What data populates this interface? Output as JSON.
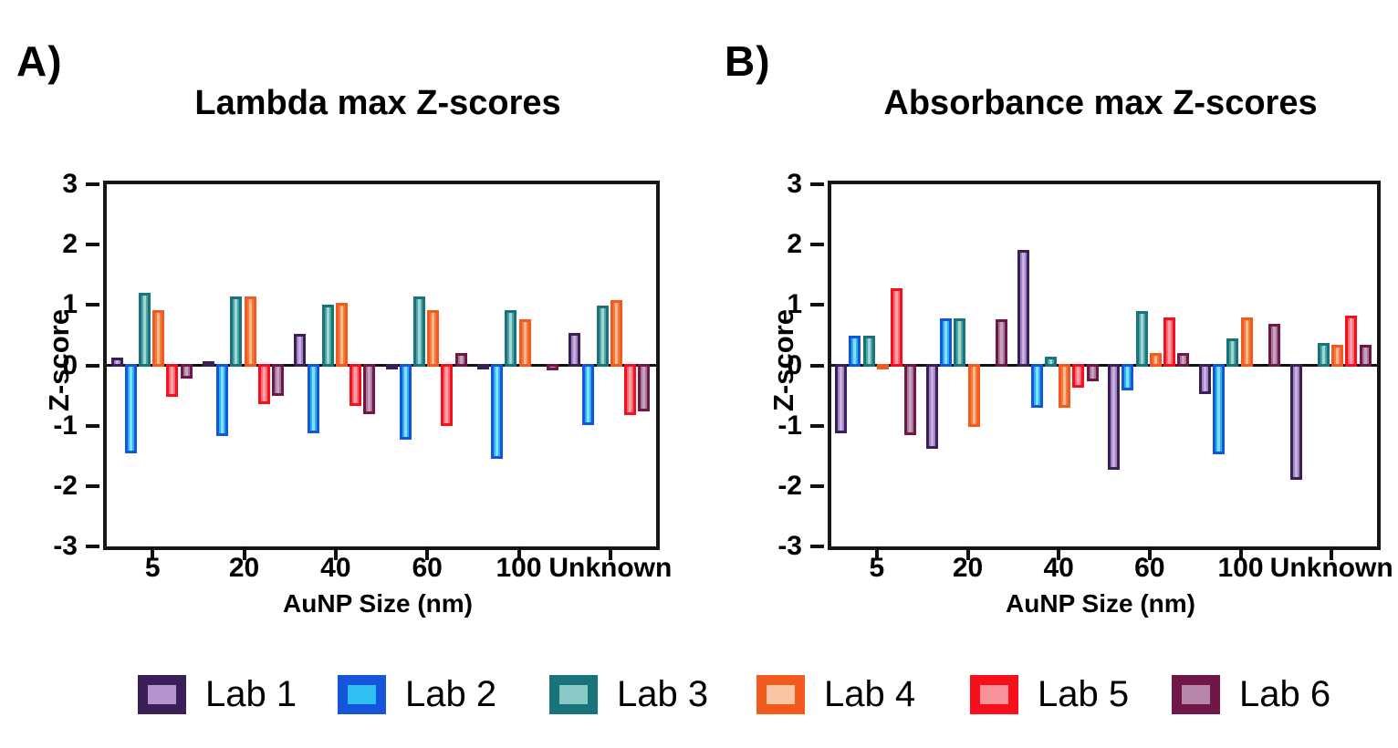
{
  "figure": {
    "background": "#ffffff"
  },
  "legend": {
    "items": [
      {
        "label": "Lab 1",
        "border_color": "#3a1f58",
        "fill_color": "#b493ce",
        "bar_fill": "#a184c4",
        "bar_hilite": "#c9b0df"
      },
      {
        "label": "Lab 2",
        "border_color": "#1455dc",
        "fill_color": "#2fbff1",
        "bar_fill": "#29b5ee",
        "bar_hilite": "#86ddfa"
      },
      {
        "label": "Lab 3",
        "border_color": "#19737a",
        "fill_color": "#8ac8c6",
        "bar_fill": "#4fa4a8",
        "bar_hilite": "#a5d5d3"
      },
      {
        "label": "Lab 4",
        "border_color": "#f35a1e",
        "fill_color": "#f9c5a4",
        "bar_fill": "#f37a40",
        "bar_hilite": "#f9b98f"
      },
      {
        "label": "Lab 5",
        "border_color": "#f7101b",
        "fill_color": "#f8929a",
        "bar_fill": "#f86a74",
        "bar_hilite": "#fba3aa"
      },
      {
        "label": "Lab 6",
        "border_color": "#701747",
        "fill_color": "#b686aa",
        "bar_fill": "#a5799b",
        "bar_hilite": "#c7a4bd"
      }
    ]
  },
  "chart_data": [
    {
      "id": "A",
      "panel_label": "A)",
      "type": "bar",
      "title": "Lambda max Z-scores",
      "xlabel": "AuNP Size (nm)",
      "ylabel": "Z-score",
      "ylim": [
        -3,
        3
      ],
      "yticks": [
        3,
        2,
        1,
        0,
        -1,
        -2,
        -3
      ],
      "grid": false,
      "categories": [
        "5",
        "20",
        "40",
        "60",
        "100",
        "Unknown"
      ],
      "series": [
        {
          "name": "Lab 1",
          "values": [
            0.15,
            0.08,
            0.54,
            -0.06,
            -0.06,
            0.56
          ]
        },
        {
          "name": "Lab 2",
          "values": [
            -1.48,
            -1.2,
            -1.15,
            -1.25,
            -1.57,
            -1.02
          ]
        },
        {
          "name": "Lab 3",
          "values": [
            1.22,
            1.17,
            1.03,
            1.17,
            0.93,
            1.01
          ]
        },
        {
          "name": "Lab 4",
          "values": [
            0.93,
            1.16,
            1.06,
            0.94,
            0.79,
            1.1
          ]
        },
        {
          "name": "Lab 5",
          "values": [
            -0.55,
            -0.66,
            -0.7,
            -1.03,
            0,
            -0.84
          ]
        },
        {
          "name": "Lab 6",
          "values": [
            -0.24,
            -0.53,
            -0.83,
            0.22,
            -0.1,
            -0.78
          ]
        }
      ]
    },
    {
      "id": "B",
      "panel_label": "B)",
      "type": "bar",
      "title": "Absorbance max Z-scores",
      "xlabel": "AuNP Size (nm)",
      "ylabel": "Z-score",
      "ylim": [
        -3,
        3
      ],
      "yticks": [
        3,
        2,
        1,
        0,
        -1,
        -2,
        -3
      ],
      "grid": false,
      "categories": [
        "5",
        "20",
        "40",
        "60",
        "100",
        "Unknown"
      ],
      "series": [
        {
          "name": "Lab 1",
          "values": [
            -1.15,
            -1.41,
            1.93,
            -1.76,
            -0.5,
            -1.92
          ]
        },
        {
          "name": "Lab 2",
          "values": [
            0.52,
            0.8,
            -0.72,
            -0.44,
            -1.49,
            0
          ]
        },
        {
          "name": "Lab 3",
          "values": [
            0.52,
            0.8,
            0.16,
            0.92,
            0.47,
            0.39
          ]
        },
        {
          "name": "Lab 4",
          "values": [
            -0.06,
            -1.04,
            -0.73,
            0.23,
            0.82,
            0.36
          ]
        },
        {
          "name": "Lab 5",
          "values": [
            1.3,
            0,
            -0.4,
            0.81,
            0,
            0.85
          ]
        },
        {
          "name": "Lab 6",
          "values": [
            -1.18,
            0.79,
            -0.29,
            0.23,
            0.71,
            0.37
          ]
        }
      ]
    }
  ]
}
